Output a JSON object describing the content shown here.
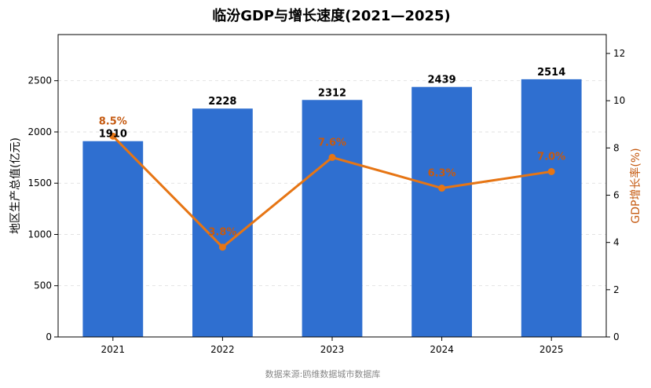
{
  "chart_data": {
    "type": "bar",
    "title": "临汾GDP与增长速度(2021—2025)",
    "categories": [
      "2021",
      "2022",
      "2023",
      "2024",
      "2025"
    ],
    "series": [
      {
        "name": "地区生产总值(亿元)",
        "type": "bar",
        "axis": "left",
        "values": [
          1910,
          2228,
          2312,
          2439,
          2514
        ],
        "labels": [
          "1910",
          "2228",
          "2312",
          "2439",
          "2514"
        ],
        "color": "#2f6fd0"
      },
      {
        "name": "GDP增长率(%)",
        "type": "line",
        "axis": "right",
        "values": [
          8.5,
          3.8,
          7.6,
          6.3,
          7.0
        ],
        "labels": [
          "8.5%",
          "3.8%",
          "7.6%",
          "6.3%",
          "7.0%"
        ],
        "color": "#e67514"
      }
    ],
    "ylabel": "地区生产总值(亿元)",
    "y2label": "GDP增长率(%)",
    "ylim": [
      0,
      2950
    ],
    "y2lim": [
      0,
      12.8
    ],
    "yticks": [
      "0",
      "500",
      "1000",
      "1500",
      "2000",
      "2500"
    ],
    "y2ticks": [
      "0",
      "2",
      "4",
      "6",
      "8",
      "10",
      "12"
    ],
    "grid": true,
    "source": "数据来源:鸥维数据城市数据库"
  }
}
